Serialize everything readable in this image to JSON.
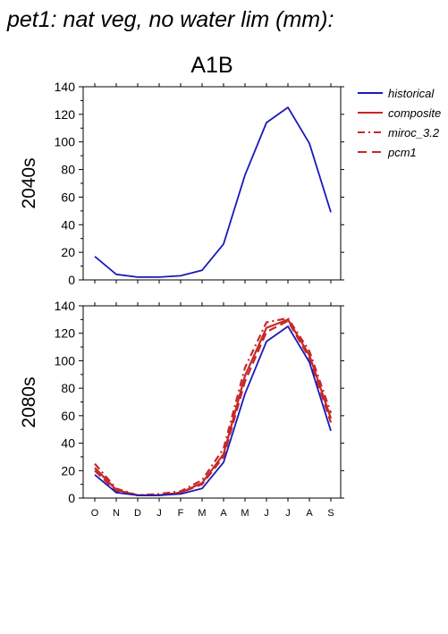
{
  "page_title": "pet1: nat veg, no water lim (mm):",
  "scenario": "A1B",
  "colors": {
    "historical": "#1a1ab8",
    "projection": "#c62828",
    "axis": "#000000"
  },
  "legend": [
    {
      "name": "historical",
      "style": "solid",
      "color": "#1a1ab8"
    },
    {
      "name": "composite",
      "style": "solid",
      "color": "#c62828"
    },
    {
      "name": "miroc_3.2",
      "style": "dashdot",
      "color": "#c62828"
    },
    {
      "name": "pcm1",
      "style": "dashed",
      "color": "#c62828"
    }
  ],
  "chart_data": [
    {
      "type": "line",
      "title": "A1B",
      "ylabel": "2040s",
      "categories": [
        "O",
        "N",
        "D",
        "J",
        "F",
        "M",
        "A",
        "M",
        "J",
        "J",
        "A",
        "S"
      ],
      "ylim": [
        0,
        140
      ],
      "yticks": [
        0,
        20,
        40,
        60,
        80,
        100,
        120,
        140
      ],
      "series": [
        {
          "name": "historical",
          "style": "solid",
          "values": [
            17,
            4,
            2,
            2,
            3,
            7,
            26,
            76,
            114,
            125,
            99,
            49
          ]
        }
      ]
    },
    {
      "type": "line",
      "ylabel": "2080s",
      "categories": [
        "O",
        "N",
        "D",
        "J",
        "F",
        "M",
        "A",
        "M",
        "J",
        "J",
        "A",
        "S"
      ],
      "ylim": [
        0,
        140
      ],
      "yticks": [
        0,
        20,
        40,
        60,
        80,
        100,
        120,
        140
      ],
      "series": [
        {
          "name": "historical",
          "style": "solid",
          "values": [
            17,
            4,
            2,
            2,
            3,
            7,
            26,
            76,
            114,
            125,
            99,
            49
          ]
        },
        {
          "name": "composite",
          "style": "solid",
          "values": [
            22,
            6,
            2,
            2,
            4,
            11,
            32,
            89,
            124,
            130,
            104,
            58
          ]
        },
        {
          "name": "miroc_3.2",
          "style": "dashdot",
          "values": [
            25,
            7,
            2,
            3,
            5,
            13,
            36,
            95,
            128,
            131,
            107,
            62
          ]
        },
        {
          "name": "pcm1",
          "style": "dashed",
          "values": [
            20,
            5,
            2,
            2,
            4,
            10,
            30,
            85,
            121,
            129,
            102,
            55
          ]
        }
      ]
    }
  ]
}
